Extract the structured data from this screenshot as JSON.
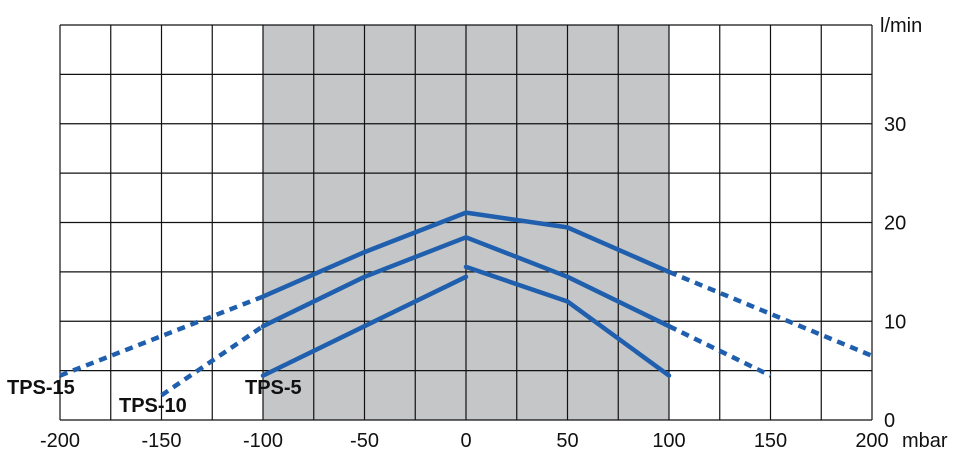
{
  "chart_data": {
    "type": "line",
    "x_unit": "mbar",
    "y_unit": "l/min",
    "xlim": [
      -200,
      200
    ],
    "ylim": [
      0,
      40
    ],
    "x_ticks": [
      -200,
      -150,
      -100,
      -50,
      0,
      50,
      100,
      150,
      200
    ],
    "y_ticks": [
      0,
      10,
      20,
      30
    ],
    "x_tick_labels": [
      "-200",
      "-150",
      "-100",
      "-50",
      "0",
      "50",
      "100",
      "150",
      "200"
    ],
    "y_tick_labels": [
      "0",
      "10",
      "20",
      "30"
    ],
    "grid": true,
    "shaded_range_x": [
      -100,
      100
    ],
    "colors": {
      "line": "#1f5fad",
      "shade": "#c4c6c8",
      "grid": "#111111"
    },
    "series": [
      {
        "name": "TPS-15",
        "solid": [
          [
            -100,
            12.5
          ],
          [
            -50,
            17
          ],
          [
            0,
            21
          ],
          [
            50,
            19.5
          ],
          [
            100,
            15
          ]
        ],
        "dashed_left": [
          [
            -200,
            4.5
          ],
          [
            -100,
            12.5
          ]
        ],
        "dashed_right": [
          [
            100,
            15
          ],
          [
            200,
            6.5
          ]
        ]
      },
      {
        "name": "TPS-10",
        "solid": [
          [
            -100,
            9.5
          ],
          [
            -50,
            14.5
          ],
          [
            0,
            18.5
          ],
          [
            50,
            14.5
          ],
          [
            100,
            9.5
          ]
        ],
        "dashed_left": [
          [
            -150,
            2.5
          ],
          [
            -100,
            9.5
          ]
        ],
        "dashed_right": [
          [
            100,
            9.5
          ],
          [
            150,
            4.5
          ]
        ]
      },
      {
        "name": "TPS-5",
        "solid_left": [
          [
            -100,
            4.5
          ],
          [
            -50,
            9.5
          ],
          [
            0,
            14.5
          ]
        ],
        "solid_right": [
          [
            0,
            15.5
          ],
          [
            50,
            12
          ],
          [
            100,
            4.5
          ]
        ]
      }
    ]
  }
}
